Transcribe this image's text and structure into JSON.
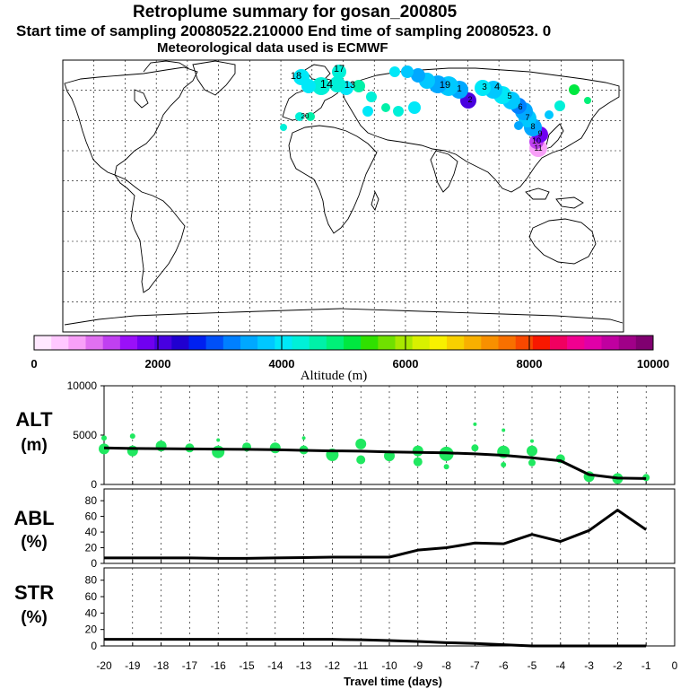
{
  "titles": {
    "line1": "Retroplume summary for gosan_200805",
    "line2": "Start time of sampling 20080522.210000     End time of sampling 20080523.     0",
    "line3": "Meteorological data used is ECMWF"
  },
  "colorbar": {
    "label": "Altitude (m)",
    "tick_labels": [
      "0",
      "2000",
      "4000",
      "6000",
      "8000",
      "10000"
    ],
    "colors": [
      "#ffe8ff",
      "#ffc8ff",
      "#f8a0f8",
      "#e070f0",
      "#c040f0",
      "#9a10f8",
      "#7000f0",
      "#4800e0",
      "#2000d0",
      "#0020f0",
      "#0050f8",
      "#0080ff",
      "#00a8ff",
      "#00c8ff",
      "#00e8f8",
      "#00f0d8",
      "#00f0a8",
      "#00f078",
      "#00e840",
      "#30e000",
      "#70e000",
      "#a8e800",
      "#d8f000",
      "#f8f000",
      "#f8d000",
      "#f8b000",
      "#f89000",
      "#f87000",
      "#f84800",
      "#f81800",
      "#f00060",
      "#f00090",
      "#e000a8",
      "#c000a0",
      "#a00088",
      "#800070"
    ]
  },
  "map_labels": [
    "18",
    "17",
    "14",
    "13",
    "11",
    "10",
    "9",
    "8",
    "7",
    "6",
    "5",
    "4",
    "3",
    "2",
    "1",
    "19",
    "20"
  ],
  "chart_data": [
    {
      "type": "line",
      "name": "ALT",
      "ylabel": "ALT (m)",
      "panel_label": "ALT",
      "unit_label": "(m)",
      "ylim": [
        0,
        10000
      ],
      "yticks": [
        "0",
        "5000",
        "10000"
      ],
      "x": [
        -20,
        -19,
        -18,
        -17,
        -16,
        -15,
        -14,
        -13,
        -12,
        -11,
        -10,
        -9,
        -8,
        -7,
        -6,
        -5,
        -4,
        -3,
        -2,
        -1
      ],
      "values": [
        3700,
        3650,
        3620,
        3600,
        3580,
        3560,
        3520,
        3450,
        3400,
        3380,
        3300,
        3250,
        3200,
        3100,
        2950,
        2700,
        2400,
        1000,
        650,
        600
      ],
      "scatter": [
        {
          "x": -20,
          "y": 3600,
          "r": 6
        },
        {
          "x": -20,
          "y": 4700,
          "r": 3
        },
        {
          "x": -19,
          "y": 3400,
          "r": 6
        },
        {
          "x": -19,
          "y": 4900,
          "r": 3
        },
        {
          "x": -18,
          "y": 3900,
          "r": 6
        },
        {
          "x": -17,
          "y": 3700,
          "r": 5
        },
        {
          "x": -16,
          "y": 3300,
          "r": 7
        },
        {
          "x": -16,
          "y": 4500,
          "r": 2
        },
        {
          "x": -15,
          "y": 3800,
          "r": 5
        },
        {
          "x": -14,
          "y": 3700,
          "r": 6
        },
        {
          "x": -13,
          "y": 3500,
          "r": 5
        },
        {
          "x": -13,
          "y": 4700,
          "r": 2
        },
        {
          "x": -12,
          "y": 3000,
          "r": 7
        },
        {
          "x": -11,
          "y": 4100,
          "r": 6
        },
        {
          "x": -11,
          "y": 2500,
          "r": 5
        },
        {
          "x": -10,
          "y": 2900,
          "r": 6
        },
        {
          "x": -9,
          "y": 3400,
          "r": 6
        },
        {
          "x": -9,
          "y": 2300,
          "r": 5
        },
        {
          "x": -8,
          "y": 3100,
          "r": 8
        },
        {
          "x": -8,
          "y": 1800,
          "r": 3
        },
        {
          "x": -7,
          "y": 3700,
          "r": 4
        },
        {
          "x": -7,
          "y": 6100,
          "r": 2
        },
        {
          "x": -6,
          "y": 3300,
          "r": 7
        },
        {
          "x": -6,
          "y": 2000,
          "r": 3
        },
        {
          "x": -6,
          "y": 5500,
          "r": 2
        },
        {
          "x": -5,
          "y": 3400,
          "r": 6
        },
        {
          "x": -5,
          "y": 2200,
          "r": 4
        },
        {
          "x": -5,
          "y": 4400,
          "r": 2
        },
        {
          "x": -4,
          "y": 2600,
          "r": 5
        },
        {
          "x": -3,
          "y": 800,
          "r": 6
        },
        {
          "x": -2,
          "y": 600,
          "r": 6
        },
        {
          "x": -1,
          "y": 700,
          "r": 4
        }
      ]
    },
    {
      "type": "line",
      "name": "ABL",
      "ylabel": "ABL (%)",
      "panel_label": "ABL",
      "unit_label": "(%)",
      "ylim": [
        0,
        95
      ],
      "yticks": [
        "0",
        "20",
        "40",
        "60",
        "80"
      ],
      "x": [
        -20,
        -19,
        -18,
        -17,
        -16,
        -15,
        -14,
        -13,
        -12,
        -11,
        -10,
        -9,
        -8,
        -7,
        -6,
        -5,
        -4,
        -3,
        -2,
        -1
      ],
      "values": [
        7,
        7,
        7,
        7,
        6.5,
        6.5,
        7,
        7.5,
        8,
        8,
        8,
        17,
        20,
        26,
        25,
        37,
        28,
        42,
        68,
        43
      ]
    },
    {
      "type": "line",
      "name": "STR",
      "ylabel": "STR (%)",
      "panel_label": "STR",
      "unit_label": "(%)",
      "ylim": [
        0,
        95
      ],
      "yticks": [
        "0",
        "20",
        "40",
        "60",
        "80"
      ],
      "x": [
        -20,
        -19,
        -18,
        -17,
        -16,
        -15,
        -14,
        -13,
        -12,
        -11,
        -10,
        -9,
        -8,
        -7,
        -6,
        -5,
        -4,
        -3,
        -2,
        -1
      ],
      "values": [
        8,
        8,
        8,
        8,
        8,
        8,
        8,
        8,
        8,
        7.5,
        6.5,
        5.5,
        4,
        3,
        1.5,
        0,
        0,
        0,
        0,
        0
      ]
    }
  ],
  "xaxis": {
    "title": "Travel time (days)",
    "tick_labels": [
      "-20",
      "-19",
      "-18",
      "-17",
      "-16",
      "-15",
      "-14",
      "-13",
      "-12",
      "-11",
      "-10",
      "-9",
      "-8",
      "-7",
      "-6",
      "-5",
      "-4",
      "-3",
      "-2",
      "-1",
      "0"
    ]
  }
}
